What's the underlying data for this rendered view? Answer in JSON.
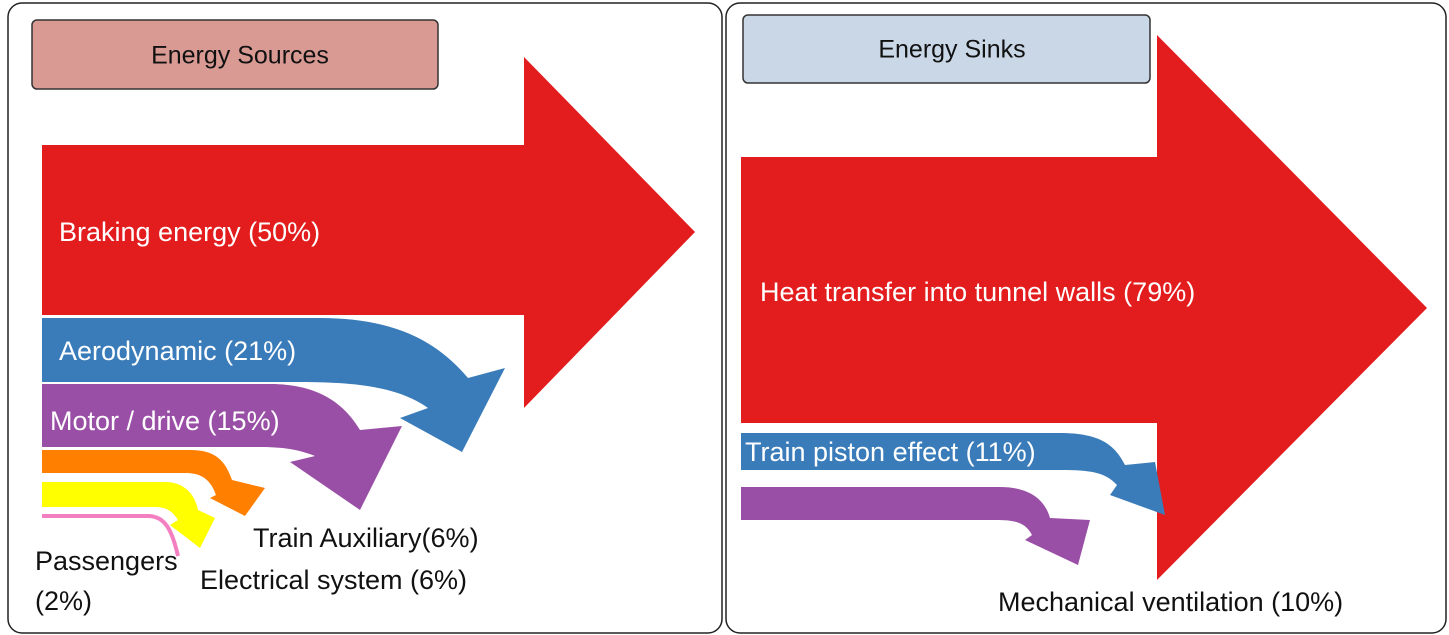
{
  "panels": [
    {
      "title": "Energy Sources",
      "flows": [
        {
          "label": "Braking energy (50%)"
        },
        {
          "label": "Aerodynamic (21%)"
        },
        {
          "label": "Motor / drive (15%)"
        },
        {
          "label": "Train Auxiliary(6%)"
        },
        {
          "label": "Electrical system (6%)"
        },
        {
          "label": [
            "Passengers",
            "(2%)"
          ]
        }
      ]
    },
    {
      "title": "Energy Sinks",
      "flows": [
        {
          "label": "Heat transfer into tunnel walls (79%)"
        },
        {
          "label": "Train piston effect (11%)"
        },
        {
          "label": "Mechanical ventilation (10%)"
        }
      ]
    }
  ]
}
